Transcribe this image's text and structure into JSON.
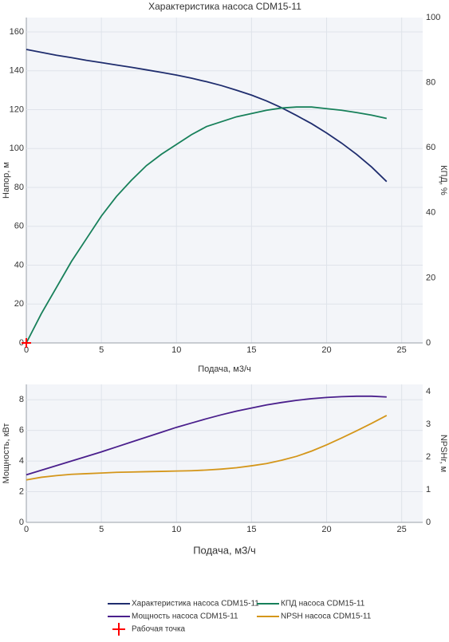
{
  "chart_data": [
    {
      "type": "line",
      "title": "Характеристика насоса CDM15-11",
      "xlabel": "Подача, м3/ч",
      "ylabel": "Напор, м",
      "y2label": "КПД, %",
      "grid": true,
      "x": [
        0,
        1,
        2,
        3,
        4,
        5,
        6,
        7,
        8,
        9,
        10,
        11,
        12,
        13,
        14,
        15,
        16,
        17,
        18,
        19,
        20,
        21,
        22,
        23,
        24
      ],
      "xlim": [
        0,
        26.4
      ],
      "xticks": [
        0,
        5,
        10,
        15,
        20,
        25
      ],
      "ylim": [
        0,
        167.4
      ],
      "yticks": [
        0,
        20,
        40,
        60,
        80,
        100,
        120,
        140,
        160
      ],
      "y2lim": [
        0,
        100
      ],
      "y2ticks": [
        0,
        20,
        40,
        60,
        80,
        100
      ],
      "series": [
        {
          "name": "Характеристика насоса CDM15-11",
          "color": "#1f2d6e",
          "values": [
            151,
            149.5,
            148,
            146.8,
            145.4,
            144.2,
            143,
            141.8,
            140.5,
            139.2,
            137.8,
            136.2,
            134.4,
            132.4,
            130,
            127.5,
            124.5,
            121,
            117,
            112.8,
            108,
            102.8,
            97,
            90.5,
            83
          ]
        },
        {
          "name": "КПД насоса CDM15-11",
          "color": "#17805a",
          "axis": "y2",
          "values": [
            0,
            9,
            17,
            25,
            32,
            39,
            45,
            50,
            54.5,
            58,
            61,
            64,
            66.5,
            68,
            69.5,
            70.5,
            71.5,
            72.2,
            72.5,
            72.5,
            72,
            71.5,
            70.8,
            70,
            69
          ]
        },
        {
          "name": "Рабочая точка",
          "color": "#ff0000",
          "type": "scatter",
          "x": [
            0
          ],
          "values": [
            0
          ]
        }
      ]
    },
    {
      "type": "line",
      "xlabel": "Подача, м3/ч",
      "ylabel": "Мощность, кВт",
      "y2label": "NPSHr, м",
      "grid": true,
      "x": [
        0,
        1,
        2,
        3,
        4,
        5,
        6,
        7,
        8,
        9,
        10,
        11,
        12,
        13,
        14,
        15,
        16,
        17,
        18,
        19,
        20,
        21,
        22,
        23,
        24
      ],
      "xlim": [
        0,
        26.4
      ],
      "xticks": [
        0,
        5,
        10,
        15,
        20,
        25
      ],
      "ylim": [
        0,
        9
      ],
      "yticks": [
        0,
        2,
        4,
        6,
        8
      ],
      "y2lim": [
        0,
        4.22
      ],
      "y2ticks": [
        0,
        1,
        2,
        3,
        4
      ],
      "series": [
        {
          "name": "Мощность насоса CDM15-11",
          "color": "#4a1f8c",
          "values": [
            3.1,
            3.4,
            3.7,
            4.0,
            4.3,
            4.6,
            4.92,
            5.24,
            5.56,
            5.88,
            6.2,
            6.48,
            6.76,
            7.02,
            7.26,
            7.46,
            7.66,
            7.82,
            7.96,
            8.07,
            8.15,
            8.2,
            8.23,
            8.23,
            8.18
          ]
        },
        {
          "name": "NPSH насоса CDM15-11",
          "color": "#d4961a",
          "axis": "y2",
          "values": [
            1.3,
            1.38,
            1.43,
            1.47,
            1.49,
            1.51,
            1.53,
            1.54,
            1.55,
            1.56,
            1.57,
            1.58,
            1.6,
            1.63,
            1.67,
            1.73,
            1.8,
            1.9,
            2.02,
            2.18,
            2.37,
            2.58,
            2.8,
            3.03,
            3.27
          ]
        }
      ]
    }
  ]
}
